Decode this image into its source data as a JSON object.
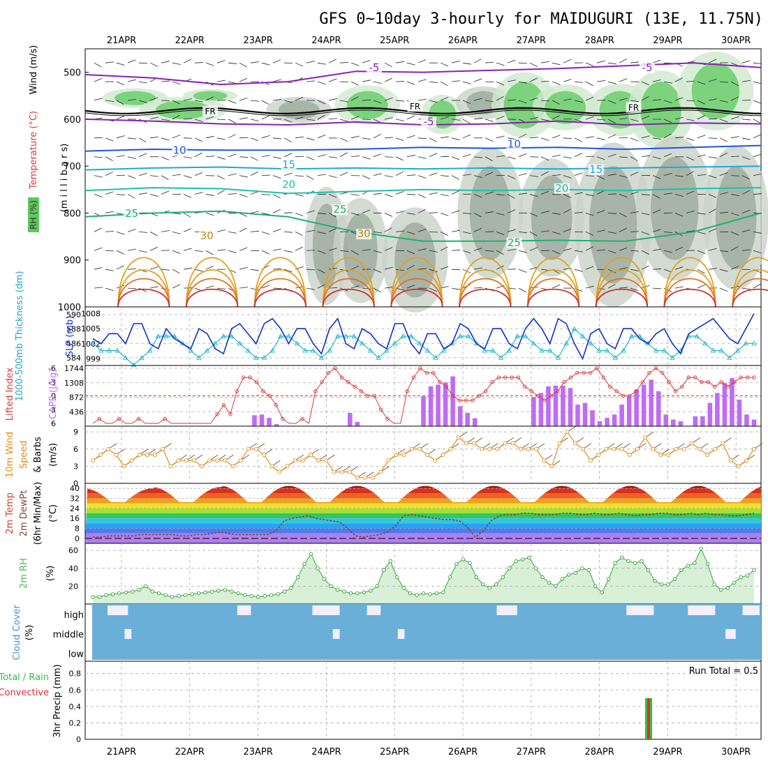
{
  "title": "GFS 0~10day 3-hourly for MAIDUGURI (13E, 11.75N)",
  "days": [
    "21APR",
    "22APR",
    "23APR",
    "24APR",
    "25APR",
    "26APR",
    "27APR",
    "28APR",
    "29APR",
    "30APR"
  ],
  "colors": {
    "rh_green": "#5ec85e",
    "rh_gray": "#9aa79a",
    "temp_purple": "#8b1fb5",
    "temp_blue": "#1f55e0",
    "temp_cyan": "#1fa8d8",
    "temp_teal": "#1fbfa8",
    "temp_green": "#20b070",
    "temp_orange": "#e0a020",
    "temp_red": "#d03030",
    "cape_bar": "#bf6cf5",
    "li_line": "#d83a3a",
    "slp_line": "#1030c8",
    "thick_line": "#20b8c8",
    "wind_line": "#e08c1a",
    "rh2m_fill": "#4cb84c",
    "cloud": "#6aafd8",
    "precip_rain": "#30c040",
    "precip_conv": "#e03030"
  },
  "chart_data": [
    {
      "type": "contour",
      "name": "upper-air",
      "ylabel_parts": [
        "RH (%)",
        "Temperature (°C)",
        "Wind (m/s)"
      ],
      "yaxis_label": "(m i l l i b a r s)",
      "yticks": [
        500,
        600,
        700,
        800,
        900,
        1000
      ],
      "ylim": [
        1000,
        450
      ],
      "contour_labels": [
        {
          "text": "-5",
          "day": 3.7,
          "p": 496
        },
        {
          "text": "-5",
          "day": 7.7,
          "p": 496
        },
        {
          "text": "-5",
          "day": 4.5,
          "p": 611
        },
        {
          "text": "FR",
          "day": 1.3,
          "p": 588
        },
        {
          "text": "FR",
          "day": 4.3,
          "p": 578
        },
        {
          "text": "FR",
          "day": 7.5,
          "p": 580
        },
        {
          "text": "10",
          "day": 0.85,
          "p": 672
        },
        {
          "text": "10",
          "day": 5.75,
          "p": 659
        },
        {
          "text": "15",
          "day": 2.45,
          "p": 703
        },
        {
          "text": "15",
          "day": 6.95,
          "p": 713
        },
        {
          "text": "20",
          "day": 2.45,
          "p": 745
        },
        {
          "text": "20",
          "day": 6.45,
          "p": 753
        },
        {
          "text": "25",
          "day": 0.15,
          "p": 807
        },
        {
          "text": "25",
          "day": 3.2,
          "p": 798
        },
        {
          "text": "25",
          "day": 5.75,
          "p": 869
        },
        {
          "text": "30",
          "day": 1.25,
          "p": 854
        },
        {
          "text": "30",
          "day": 3.55,
          "p": 850
        }
      ],
      "isotherms": [
        {
          "temp": -5,
          "color": "#8b1fb5",
          "p": [
            600,
            604,
            610,
            612,
            606,
            612,
            610,
            604,
            612,
            608,
            610
          ]
        },
        {
          "temp": -5,
          "color": "#8b1fb5",
          "p": [
            505,
            512,
            526,
            520,
            498,
            500,
            496,
            492,
            486,
            480,
            490
          ]
        },
        {
          "temp": 10,
          "color": "#1f55e0",
          "p": [
            668,
            664,
            666,
            666,
            664,
            660,
            662,
            660,
            664,
            660,
            656
          ]
        },
        {
          "temp": 15,
          "color": "#1fa8d8",
          "p": [
            708,
            704,
            702,
            706,
            704,
            706,
            704,
            706,
            704,
            702,
            700
          ]
        },
        {
          "temp": 20,
          "color": "#1fbfa8",
          "p": [
            752,
            746,
            748,
            758,
            754,
            750,
            752,
            750,
            752,
            748,
            746
          ]
        },
        {
          "temp": 25,
          "color": "#20b070",
          "p": [
            808,
            800,
            796,
            808,
            840,
            860,
            860,
            858,
            860,
            840,
            800
          ]
        }
      ]
    },
    {
      "type": "line",
      "name": "thickness-slp",
      "ylabel_left": "1000-500mb Thickness (dm)",
      "ylabel_right": "SLP (mb)",
      "left_ticks": [
        584,
        586,
        588,
        590
      ],
      "right_ticks": [
        999,
        1002,
        1005,
        1008
      ],
      "slp": [
        1003,
        1002,
        1004,
        1004,
        1002,
        1006,
        1006,
        1002,
        1001,
        1005,
        1003,
        1002,
        1001,
        1005,
        1004,
        1001,
        1000,
        1005,
        1006,
        1004,
        1002,
        1006,
        1007,
        1005,
        1002,
        1005,
        1005,
        1002,
        1000,
        1005,
        1007,
        1002,
        1001,
        1005,
        1004,
        1002,
        1001,
        1006,
        1006,
        1002,
        1000,
        1004,
        1004,
        1001,
        1002,
        1006,
        1005,
        1002,
        1001,
        1005,
        1005,
        1002,
        1001,
        1005,
        1007,
        1005,
        1002,
        1007,
        1006,
        1002,
        999,
        1004,
        1005,
        1002,
        1001,
        1005,
        1005,
        1003,
        1002,
        1004,
        1005,
        1002,
        1000,
        1004,
        1005,
        1006,
        1007,
        1005,
        1003,
        1002,
        1005,
        1008
      ],
      "thickness": [
        586,
        585,
        585,
        585,
        584,
        583,
        584,
        585,
        587,
        587,
        587,
        586,
        585,
        584,
        585,
        586,
        587,
        587,
        586,
        585,
        584,
        584,
        585,
        587,
        587,
        586,
        585,
        585,
        584,
        585,
        587,
        587,
        587,
        586,
        585,
        584,
        585,
        586,
        587,
        587,
        586,
        585,
        584,
        585,
        586,
        587,
        587,
        586,
        585,
        585,
        584,
        585,
        587,
        587,
        586,
        585,
        585,
        584,
        586,
        588,
        587,
        586,
        585,
        585,
        584,
        585,
        587,
        587,
        586,
        585,
        585,
        584,
        585,
        587,
        587,
        586,
        585,
        585,
        584,
        585,
        586,
        586
      ]
    },
    {
      "type": "bar+line",
      "name": "cape-lifted-index",
      "ylabel_left": "Lifted Index",
      "ylabel_right": "CAPE (J/kg)",
      "li_ticks": [
        -6,
        -3,
        0,
        3,
        6
      ],
      "cape_ticks": [
        436,
        872,
        1308,
        1744
      ],
      "cape": [
        0,
        0,
        0,
        0,
        0,
        0,
        0,
        0,
        0,
        0,
        0,
        0,
        0,
        0,
        0,
        0,
        0,
        0,
        0,
        0,
        0,
        0,
        330,
        350,
        250,
        60,
        0,
        0,
        0,
        0,
        0,
        0,
        0,
        0,
        0,
        400,
        130,
        0,
        0,
        0,
        0,
        0,
        0,
        0,
        0,
        900,
        1200,
        1250,
        1320,
        1500,
        600,
        400,
        240,
        0,
        0,
        0,
        0,
        0,
        0,
        0,
        880,
        1000,
        1200,
        1220,
        1220,
        1150,
        650,
        700,
        480,
        150,
        250,
        350,
        650,
        900,
        1100,
        1250,
        1400,
        1050,
        350,
        200,
        150,
        0,
        300,
        300,
        700,
        1000,
        1300,
        1450,
        800,
        350,
        200
      ],
      "li": [
        6,
        5,
        6,
        6,
        5,
        6,
        6,
        5,
        6,
        6,
        6,
        5,
        6,
        6,
        6,
        6,
        6,
        6,
        6,
        4,
        2,
        4,
        -1,
        -4,
        -4,
        -3,
        -1,
        0,
        2,
        5,
        6,
        6,
        5,
        6,
        -1,
        -3,
        -5,
        -6,
        -4,
        -3,
        -2,
        -1,
        0,
        0,
        3,
        5,
        6,
        6,
        -1,
        -4,
        -6,
        -5,
        -5,
        -3,
        -2,
        0,
        1,
        1,
        1,
        0,
        -1,
        -3,
        -4,
        -4,
        -4,
        -4,
        -2,
        -1,
        0,
        1,
        0,
        -1,
        -3,
        -4,
        -5,
        -5,
        -5,
        -6,
        -4,
        -2,
        -1,
        0,
        0,
        -1,
        -3,
        -5,
        -6,
        -5,
        -3,
        -1,
        -2,
        -4,
        -4,
        -3,
        -3,
        -2,
        -3,
        -2,
        -3,
        -4,
        -4,
        -4
      ]
    },
    {
      "type": "line",
      "name": "10m-wind",
      "ylabel": "10m Wind Speed & Barbs (m/s)",
      "yticks": [
        0,
        3,
        6,
        9
      ],
      "ylim": [
        0,
        10
      ],
      "speed": [
        4,
        5,
        6,
        5,
        3,
        4,
        5,
        5,
        5,
        6,
        3,
        4,
        4,
        4,
        3,
        4,
        4,
        4,
        3,
        4,
        6,
        6,
        5,
        3,
        2,
        3,
        4,
        4,
        5,
        4,
        4,
        2,
        2,
        2,
        1,
        1,
        1,
        2,
        4,
        5,
        5,
        6,
        6,
        5,
        4,
        5,
        6,
        8,
        7,
        7,
        6,
        6,
        6,
        7,
        7,
        6,
        6,
        6,
        4,
        3,
        7,
        9,
        7,
        6,
        4,
        5,
        6,
        6,
        6,
        5,
        6,
        8,
        6,
        5,
        5,
        6,
        6,
        7,
        6,
        5,
        6,
        7,
        4,
        3,
        4,
        6
      ]
    },
    {
      "type": "area",
      "name": "2m-temperature",
      "ylabel": "2m Temp 2m DewPt (6hr Min/Max) (°C)",
      "yticks": [
        0,
        8,
        16,
        24,
        32,
        40
      ],
      "ylim": [
        -4,
        44
      ],
      "temp_max_by_day": [
        40,
        41,
        42,
        42,
        42,
        42,
        42,
        42,
        42,
        42
      ],
      "temp_min_by_day": [
        29,
        29,
        29,
        29,
        29,
        29,
        29,
        29,
        29,
        29
      ],
      "dewpoint": [
        1,
        1,
        2,
        2,
        2,
        2,
        3,
        3,
        3,
        3,
        3,
        2,
        2,
        3,
        3,
        4,
        5,
        4,
        3,
        3,
        3,
        3,
        3,
        6,
        14,
        16,
        17,
        18,
        16,
        15,
        14,
        13,
        8,
        2,
        1,
        2,
        3,
        5,
        10,
        18,
        19,
        18,
        17,
        16,
        15,
        15,
        14,
        9,
        1,
        6,
        14,
        18,
        19,
        19,
        20,
        20,
        19,
        19,
        19,
        20,
        20,
        19,
        19,
        20,
        19,
        19,
        20,
        19,
        18,
        19,
        19,
        20,
        20,
        19,
        19,
        20,
        19,
        20,
        19,
        19,
        18,
        18,
        19,
        20
      ]
    },
    {
      "type": "area",
      "name": "2m-rh",
      "ylabel": "2m RH (%)",
      "yticks": [
        20,
        40,
        60
      ],
      "ylim": [
        0,
        68
      ],
      "rh": [
        8,
        8,
        10,
        11,
        12,
        13,
        14,
        16,
        20,
        14,
        12,
        10,
        8,
        9,
        10,
        11,
        12,
        13,
        14,
        15,
        16,
        14,
        12,
        10,
        9,
        8,
        9,
        10,
        11,
        14,
        18,
        30,
        45,
        56,
        40,
        28,
        20,
        16,
        14,
        12,
        12,
        13,
        15,
        20,
        38,
        48,
        30,
        18,
        12,
        10,
        12,
        11,
        12,
        13,
        30,
        45,
        50,
        46,
        30,
        22,
        18,
        22,
        30,
        40,
        48,
        50,
        52,
        40,
        30,
        24,
        20,
        28,
        33,
        35,
        40,
        38,
        20,
        13,
        28,
        46,
        52,
        48,
        46,
        48,
        38,
        26,
        22,
        22,
        28,
        38,
        43,
        46,
        62,
        45,
        22,
        16,
        18,
        24,
        30,
        32,
        38
      ]
    },
    {
      "type": "heatmap",
      "name": "cloud-cover",
      "ylabel": "Cloud Cover (%)",
      "layers": [
        "high",
        "middle",
        "low"
      ]
    },
    {
      "type": "bar",
      "name": "precip",
      "ylabel_left": "Total / Rain",
      "ylabel_left2": "Convective",
      "ylabel": "3hr Precip (mm)",
      "yticks": [
        0,
        0.2,
        0.4,
        0.6,
        0.8
      ],
      "ylim": [
        0,
        0.95
      ],
      "run_total_label": "Run Total = 0.5",
      "bars": [
        {
          "day": 7.72,
          "value": 0.5
        }
      ]
    }
  ]
}
